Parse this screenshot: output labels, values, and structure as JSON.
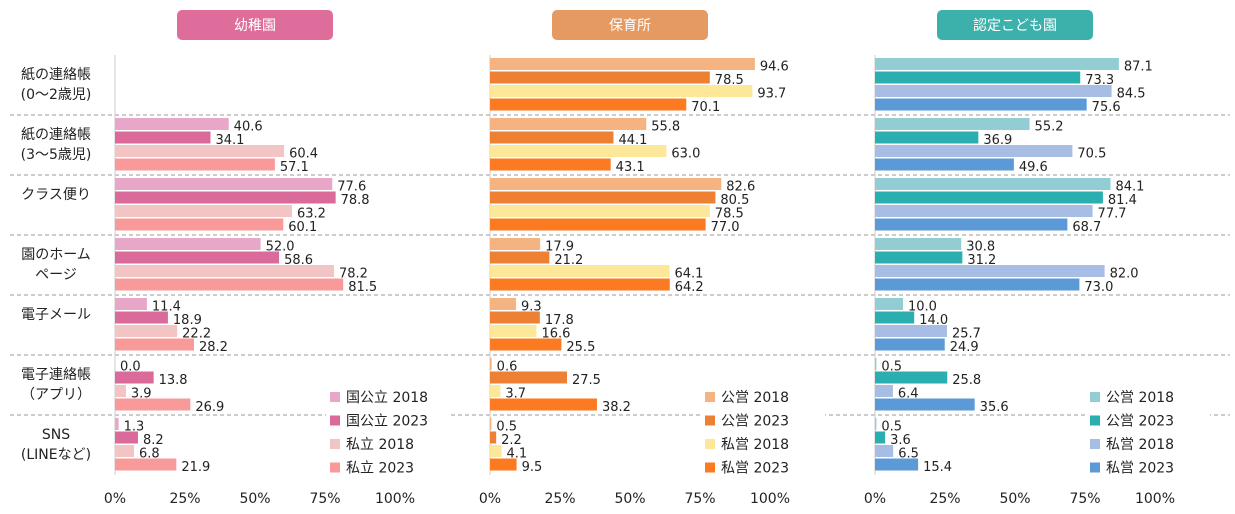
{
  "chart_data": [
    {
      "type": "hbar",
      "title": "幼稚園",
      "title_color": "#df6d9b",
      "categories": [
        "紙の連絡帳\n(0〜2歳児)",
        "紙の連絡帳\n(3〜5歳児)",
        "クラス便り",
        "園のホーム\nページ",
        "電子メール",
        "電子連絡帳\n（アプリ）",
        "SNS\n(LINEなど)"
      ],
      "xlim": [
        0,
        100
      ],
      "xticks": [
        {
          "value": 0,
          "label": "0%"
        },
        {
          "value": 25,
          "label": "25%"
        },
        {
          "value": 50,
          "label": "50%"
        },
        {
          "value": 75,
          "label": "75%"
        },
        {
          "value": 100,
          "label": "100%"
        }
      ],
      "series": [
        {
          "name": "国公立 2018",
          "color": "#e8a6c8",
          "values": [
            null,
            40.6,
            77.6,
            52.0,
            11.4,
            0.0,
            1.3
          ],
          "value_labels": [
            null,
            "40.6",
            "77.6",
            "52.0",
            "11.4",
            "0.0",
            "1.3"
          ]
        },
        {
          "name": "国公立 2023",
          "color": "#d96a9a",
          "values": [
            null,
            34.1,
            78.8,
            58.6,
            18.9,
            13.8,
            8.2
          ],
          "value_labels": [
            null,
            "34.1",
            "78.8",
            "58.6",
            "18.9",
            "13.8",
            "8.2"
          ]
        },
        {
          "name": "私立 2018",
          "color": "#f2c4c4",
          "values": [
            null,
            60.4,
            63.2,
            78.2,
            22.2,
            3.9,
            6.8
          ],
          "value_labels": [
            null,
            "60.4",
            "63.2",
            "78.2",
            "22.2",
            "3.9",
            "6.8"
          ]
        },
        {
          "name": "私立 2023",
          "color": "#f99a9a",
          "values": [
            null,
            57.1,
            60.1,
            81.5,
            28.2,
            26.9,
            21.9
          ],
          "value_labels": [
            null,
            "57.1",
            "60.1",
            "81.5",
            "28.2",
            "26.9",
            "21.9"
          ]
        }
      ]
    },
    {
      "type": "hbar",
      "title": "保育所",
      "title_color": "#e59a62",
      "xlim": [
        0,
        100
      ],
      "xticks": [
        {
          "value": 0,
          "label": "0%"
        },
        {
          "value": 25,
          "label": "25%"
        },
        {
          "value": 50,
          "label": "50%"
        },
        {
          "value": 75,
          "label": "75%"
        },
        {
          "value": 100,
          "label": "100%"
        }
      ],
      "series": [
        {
          "name": "公営 2018",
          "color": "#f5b382",
          "values": [
            94.6,
            55.8,
            82.6,
            17.9,
            9.3,
            0.6,
            0.5
          ],
          "value_labels": [
            "94.6",
            "55.8",
            "82.6",
            "17.9",
            "9.3",
            "0.6",
            "0.5"
          ]
        },
        {
          "name": "公営 2023",
          "color": "#ee8034",
          "values": [
            78.5,
            44.1,
            80.5,
            21.2,
            17.8,
            27.5,
            2.2
          ],
          "value_labels": [
            "78.5",
            "44.1",
            "80.5",
            "21.2",
            "17.8",
            "27.5",
            "2.2"
          ]
        },
        {
          "name": "私営 2018",
          "color": "#fde89a",
          "values": [
            93.7,
            63.0,
            78.5,
            64.1,
            16.6,
            3.7,
            4.1
          ],
          "value_labels": [
            "93.7",
            "63.0",
            "78.5",
            "64.1",
            "16.6",
            "3.7",
            "4.1"
          ]
        },
        {
          "name": "私営 2023",
          "color": "#fb7a22",
          "values": [
            70.1,
            43.1,
            77.0,
            64.2,
            25.5,
            38.2,
            9.5
          ],
          "value_labels": [
            "70.1",
            "43.1",
            "77.0",
            "64.2",
            "25.5",
            "38.2",
            "9.5"
          ]
        }
      ]
    },
    {
      "type": "hbar",
      "title": "認定こども園",
      "title_color": "#3cb1ac",
      "xlim": [
        0,
        100
      ],
      "xticks": [
        {
          "value": 0,
          "label": "0%"
        },
        {
          "value": 25,
          "label": "25%"
        },
        {
          "value": 50,
          "label": "50%"
        },
        {
          "value": 75,
          "label": "75%"
        },
        {
          "value": 100,
          "label": "100%"
        }
      ],
      "series": [
        {
          "name": "公営 2018",
          "color": "#93cdd4",
          "values": [
            87.1,
            55.2,
            84.1,
            30.8,
            10.0,
            0.5,
            0.5
          ],
          "value_labels": [
            "87.1",
            "55.2",
            "84.1",
            "30.8",
            "10.0",
            "0.5",
            "0.5"
          ]
        },
        {
          "name": "公営 2023",
          "color": "#2aaeb0",
          "values": [
            73.3,
            36.9,
            81.4,
            31.2,
            14.0,
            25.8,
            3.6
          ],
          "value_labels": [
            "73.3",
            "36.9",
            "81.4",
            "31.2",
            "14.0",
            "25.8",
            "3.6"
          ]
        },
        {
          "name": "私営 2018",
          "color": "#a7bde3",
          "values": [
            84.5,
            70.5,
            77.7,
            82.0,
            25.7,
            6.4,
            6.5
          ],
          "value_labels": [
            "84.5",
            "70.5",
            "77.7",
            "82.0",
            "25.7",
            "6.4",
            "6.5"
          ]
        },
        {
          "name": "私営 2023",
          "color": "#5b9ad6",
          "values": [
            75.6,
            49.6,
            68.7,
            73.0,
            24.9,
            35.6,
            15.4
          ],
          "value_labels": [
            "75.6",
            "49.6",
            "68.7",
            "73.0",
            "24.9",
            "35.6",
            "15.4"
          ]
        }
      ]
    }
  ]
}
